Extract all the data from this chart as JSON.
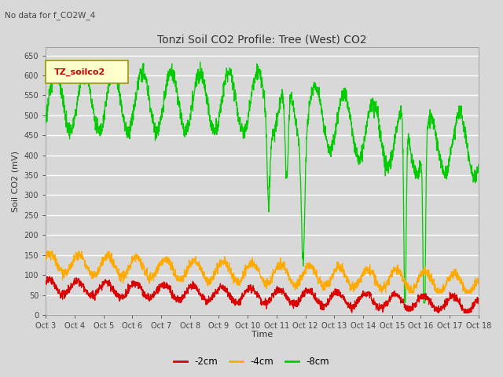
{
  "title": "Tonzi Soil CO2 Profile: Tree (West) CO2",
  "subtitle": "No data for f_CO2W_4",
  "ylabel": "Soil CO2 (mV)",
  "xlabel": "Time",
  "legend_label": "TZ_soilco2",
  "series_labels": [
    "-2cm",
    "-4cm",
    "-8cm"
  ],
  "series_colors": [
    "#dd0000",
    "#ffaa00",
    "#00cc00"
  ],
  "ylim": [
    0,
    670
  ],
  "yticks": [
    0,
    50,
    100,
    150,
    200,
    250,
    300,
    350,
    400,
    450,
    500,
    550,
    600,
    650
  ],
  "xtick_labels": [
    "Oct 3",
    "Oct 4",
    "Oct 5",
    "Oct 6",
    "Oct 7",
    "Oct 8",
    "Oct 9",
    "Oct 10",
    "Oct 11",
    "Oct 12",
    "Oct 13",
    "Oct 14",
    "Oct 15",
    "Oct 16",
    "Oct 17",
    "Oct 18"
  ],
  "bg_color": "#d8d8d8",
  "grid_color": "#e8e8e8",
  "line_width": 0.9,
  "title_fontsize": 10,
  "tick_fontsize": 7,
  "ylabel_fontsize": 8
}
